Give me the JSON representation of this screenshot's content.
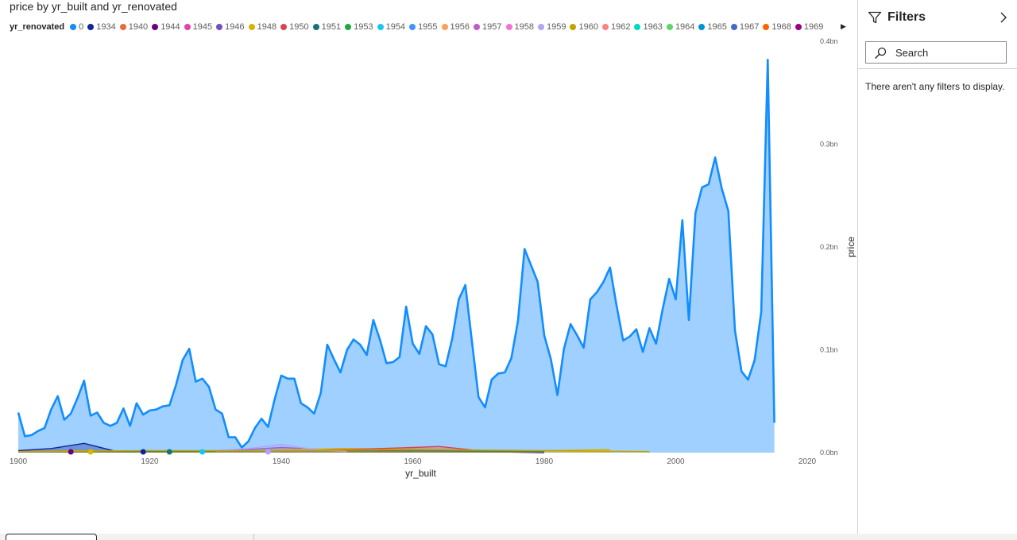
{
  "chart_data": {
    "type": "area",
    "title": "price by yr_built and yr_renovated",
    "xlabel": "yr_built",
    "ylabel": "price",
    "xlim": [
      1900,
      2020
    ],
    "ylim": [
      0,
      400000000
    ],
    "x_ticks": [
      "1900",
      "1920",
      "1940",
      "1960",
      "1980",
      "2000",
      "2020"
    ],
    "y_ticks": [
      "0.0bn",
      "0.1bn",
      "0.2bn",
      "0.3bn",
      "0.4bn"
    ],
    "y_tick_values": [
      0,
      100000000,
      200000000,
      300000000,
      400000000
    ],
    "legend": {
      "title": "yr_renovated",
      "position": "top-left",
      "entries": [
        {
          "name": "0",
          "color": "#118DFF"
        },
        {
          "name": "1934",
          "color": "#12239E"
        },
        {
          "name": "1940",
          "color": "#E66C37"
        },
        {
          "name": "1944",
          "color": "#6B007B"
        },
        {
          "name": "1945",
          "color": "#E044A7"
        },
        {
          "name": "1946",
          "color": "#744EC2"
        },
        {
          "name": "1948",
          "color": "#D9B300"
        },
        {
          "name": "1950",
          "color": "#D64550"
        },
        {
          "name": "1951",
          "color": "#197278"
        },
        {
          "name": "1953",
          "color": "#1AAB40"
        },
        {
          "name": "1954",
          "color": "#15C6F4"
        },
        {
          "name": "1955",
          "color": "#4092FF"
        },
        {
          "name": "1956",
          "color": "#FFA058"
        },
        {
          "name": "1957",
          "color": "#BE5DC9"
        },
        {
          "name": "1958",
          "color": "#F472D0"
        },
        {
          "name": "1959",
          "color": "#B5A1FF"
        },
        {
          "name": "1960",
          "color": "#C4A200"
        },
        {
          "name": "1962",
          "color": "#FF8080"
        },
        {
          "name": "1963",
          "color": "#00DBBC"
        },
        {
          "name": "1964",
          "color": "#5BD667"
        },
        {
          "name": "1965",
          "color": "#0091D5"
        },
        {
          "name": "1967",
          "color": "#4668C5"
        },
        {
          "name": "1968",
          "color": "#FF6300"
        },
        {
          "name": "1969",
          "color": "#99008A"
        }
      ]
    },
    "series": [
      {
        "name": "0",
        "color": "#118DFF",
        "fill": "#9FD0FF",
        "x": [
          1900,
          1901,
          1902,
          1903,
          1904,
          1905,
          1906,
          1907,
          1908,
          1909,
          1910,
          1911,
          1912,
          1913,
          1914,
          1915,
          1916,
          1917,
          1918,
          1919,
          1920,
          1921,
          1922,
          1923,
          1924,
          1925,
          1926,
          1927,
          1928,
          1929,
          1930,
          1931,
          1932,
          1933,
          1934,
          1935,
          1936,
          1937,
          1938,
          1939,
          1940,
          1941,
          1942,
          1943,
          1944,
          1945,
          1946,
          1947,
          1948,
          1949,
          1950,
          1951,
          1952,
          1953,
          1954,
          1955,
          1956,
          1957,
          1958,
          1959,
          1960,
          1961,
          1962,
          1963,
          1964,
          1965,
          1966,
          1967,
          1968,
          1969,
          1970,
          1971,
          1972,
          1973,
          1974,
          1975,
          1976,
          1977,
          1978,
          1979,
          1980,
          1981,
          1982,
          1983,
          1984,
          1985,
          1986,
          1987,
          1988,
          1989,
          1990,
          1991,
          1992,
          1993,
          1994,
          1995,
          1996,
          1997,
          1998,
          1999,
          2000,
          2001,
          2002,
          2003,
          2004,
          2005,
          2006,
          2007,
          2008,
          2009,
          2010,
          2011,
          2012,
          2013,
          2014,
          2015
        ],
        "values": [
          39,
          16,
          17,
          21,
          24,
          42,
          55,
          32,
          38,
          53,
          70,
          36,
          39,
          29,
          26,
          29,
          43,
          26,
          48,
          37,
          41,
          42,
          45,
          46,
          66,
          90,
          101,
          69,
          72,
          64,
          42,
          38,
          15,
          15,
          5,
          11,
          24,
          33,
          25,
          52,
          75,
          72,
          72,
          48,
          44,
          38,
          58,
          105,
          91,
          78,
          100,
          110,
          105,
          95,
          129,
          110,
          87,
          88,
          93,
          142,
          106,
          96,
          123,
          115,
          86,
          84,
          111,
          149,
          163,
          108,
          54,
          44,
          71,
          77,
          78,
          92,
          128,
          198,
          182,
          166,
          114,
          91,
          56,
          101,
          125,
          114,
          102,
          149,
          156,
          166,
          180,
          143,
          109,
          113,
          120,
          98,
          121,
          106,
          139,
          169,
          149,
          226,
          129,
          233,
          258,
          261,
          287,
          257,
          235,
          119,
          79,
          71,
          90,
          137,
          382,
          29
        ]
      },
      {
        "name": "1934",
        "color": "#12239E",
        "x": [
          1900,
          1905,
          1910,
          1915,
          1920,
          1930,
          1940,
          1950,
          1960,
          1970,
          1980
        ],
        "values": [
          2,
          4,
          9,
          1,
          1,
          1,
          2,
          3,
          2,
          1,
          0
        ]
      },
      {
        "name": "1946",
        "color": "#744EC2",
        "x": [
          1900,
          1910,
          1920,
          1930,
          1940,
          1950,
          1960
        ],
        "values": [
          1,
          2,
          1,
          1,
          5,
          2,
          1
        ]
      },
      {
        "name": "1948",
        "color": "#D9B300",
        "x": [
          1900,
          1910,
          1920,
          1930,
          1940,
          1950,
          1960,
          1970,
          1980,
          1990
        ],
        "values": [
          1,
          2,
          1,
          1,
          3,
          4,
          3,
          2,
          2,
          3
        ]
      },
      {
        "name": "1950",
        "color": "#D64550",
        "x": [
          1940,
          1950,
          1960,
          1964,
          1970,
          1980
        ],
        "values": [
          1,
          3,
          5,
          6,
          2,
          1
        ]
      },
      {
        "name": "1951",
        "color": "#197278",
        "x": [
          1900,
          1920,
          1940,
          1960,
          1980
        ],
        "values": [
          1,
          1,
          2,
          2,
          1
        ]
      },
      {
        "name": "1959",
        "color": "#B5A1FF",
        "x": [
          1930,
          1935,
          1940,
          1945,
          1950
        ],
        "values": [
          2,
          4,
          8,
          3,
          1
        ]
      },
      {
        "name": "1960",
        "color": "#C4A200",
        "x": [
          1900,
          1920,
          1940,
          1960,
          1980,
          1996
        ],
        "values": [
          1,
          2,
          2,
          3,
          2,
          1
        ]
      }
    ],
    "value_unit": "millions",
    "markers": [
      {
        "name": "1944",
        "x": 1908,
        "color": "#6B007B"
      },
      {
        "name": "1948",
        "x": 1911,
        "color": "#D9B300"
      },
      {
        "name": "1934",
        "x": 1919,
        "color": "#12239E"
      },
      {
        "name": "1951",
        "x": 1923,
        "color": "#197278"
      },
      {
        "name": "1954",
        "x": 1928,
        "color": "#15C6F4"
      },
      {
        "name": "1959",
        "x": 1938,
        "color": "#B5A1FF"
      }
    ]
  },
  "filters_pane": {
    "title": "Filters",
    "search_placeholder": "Search",
    "empty_message": "There aren't any filters to display."
  }
}
